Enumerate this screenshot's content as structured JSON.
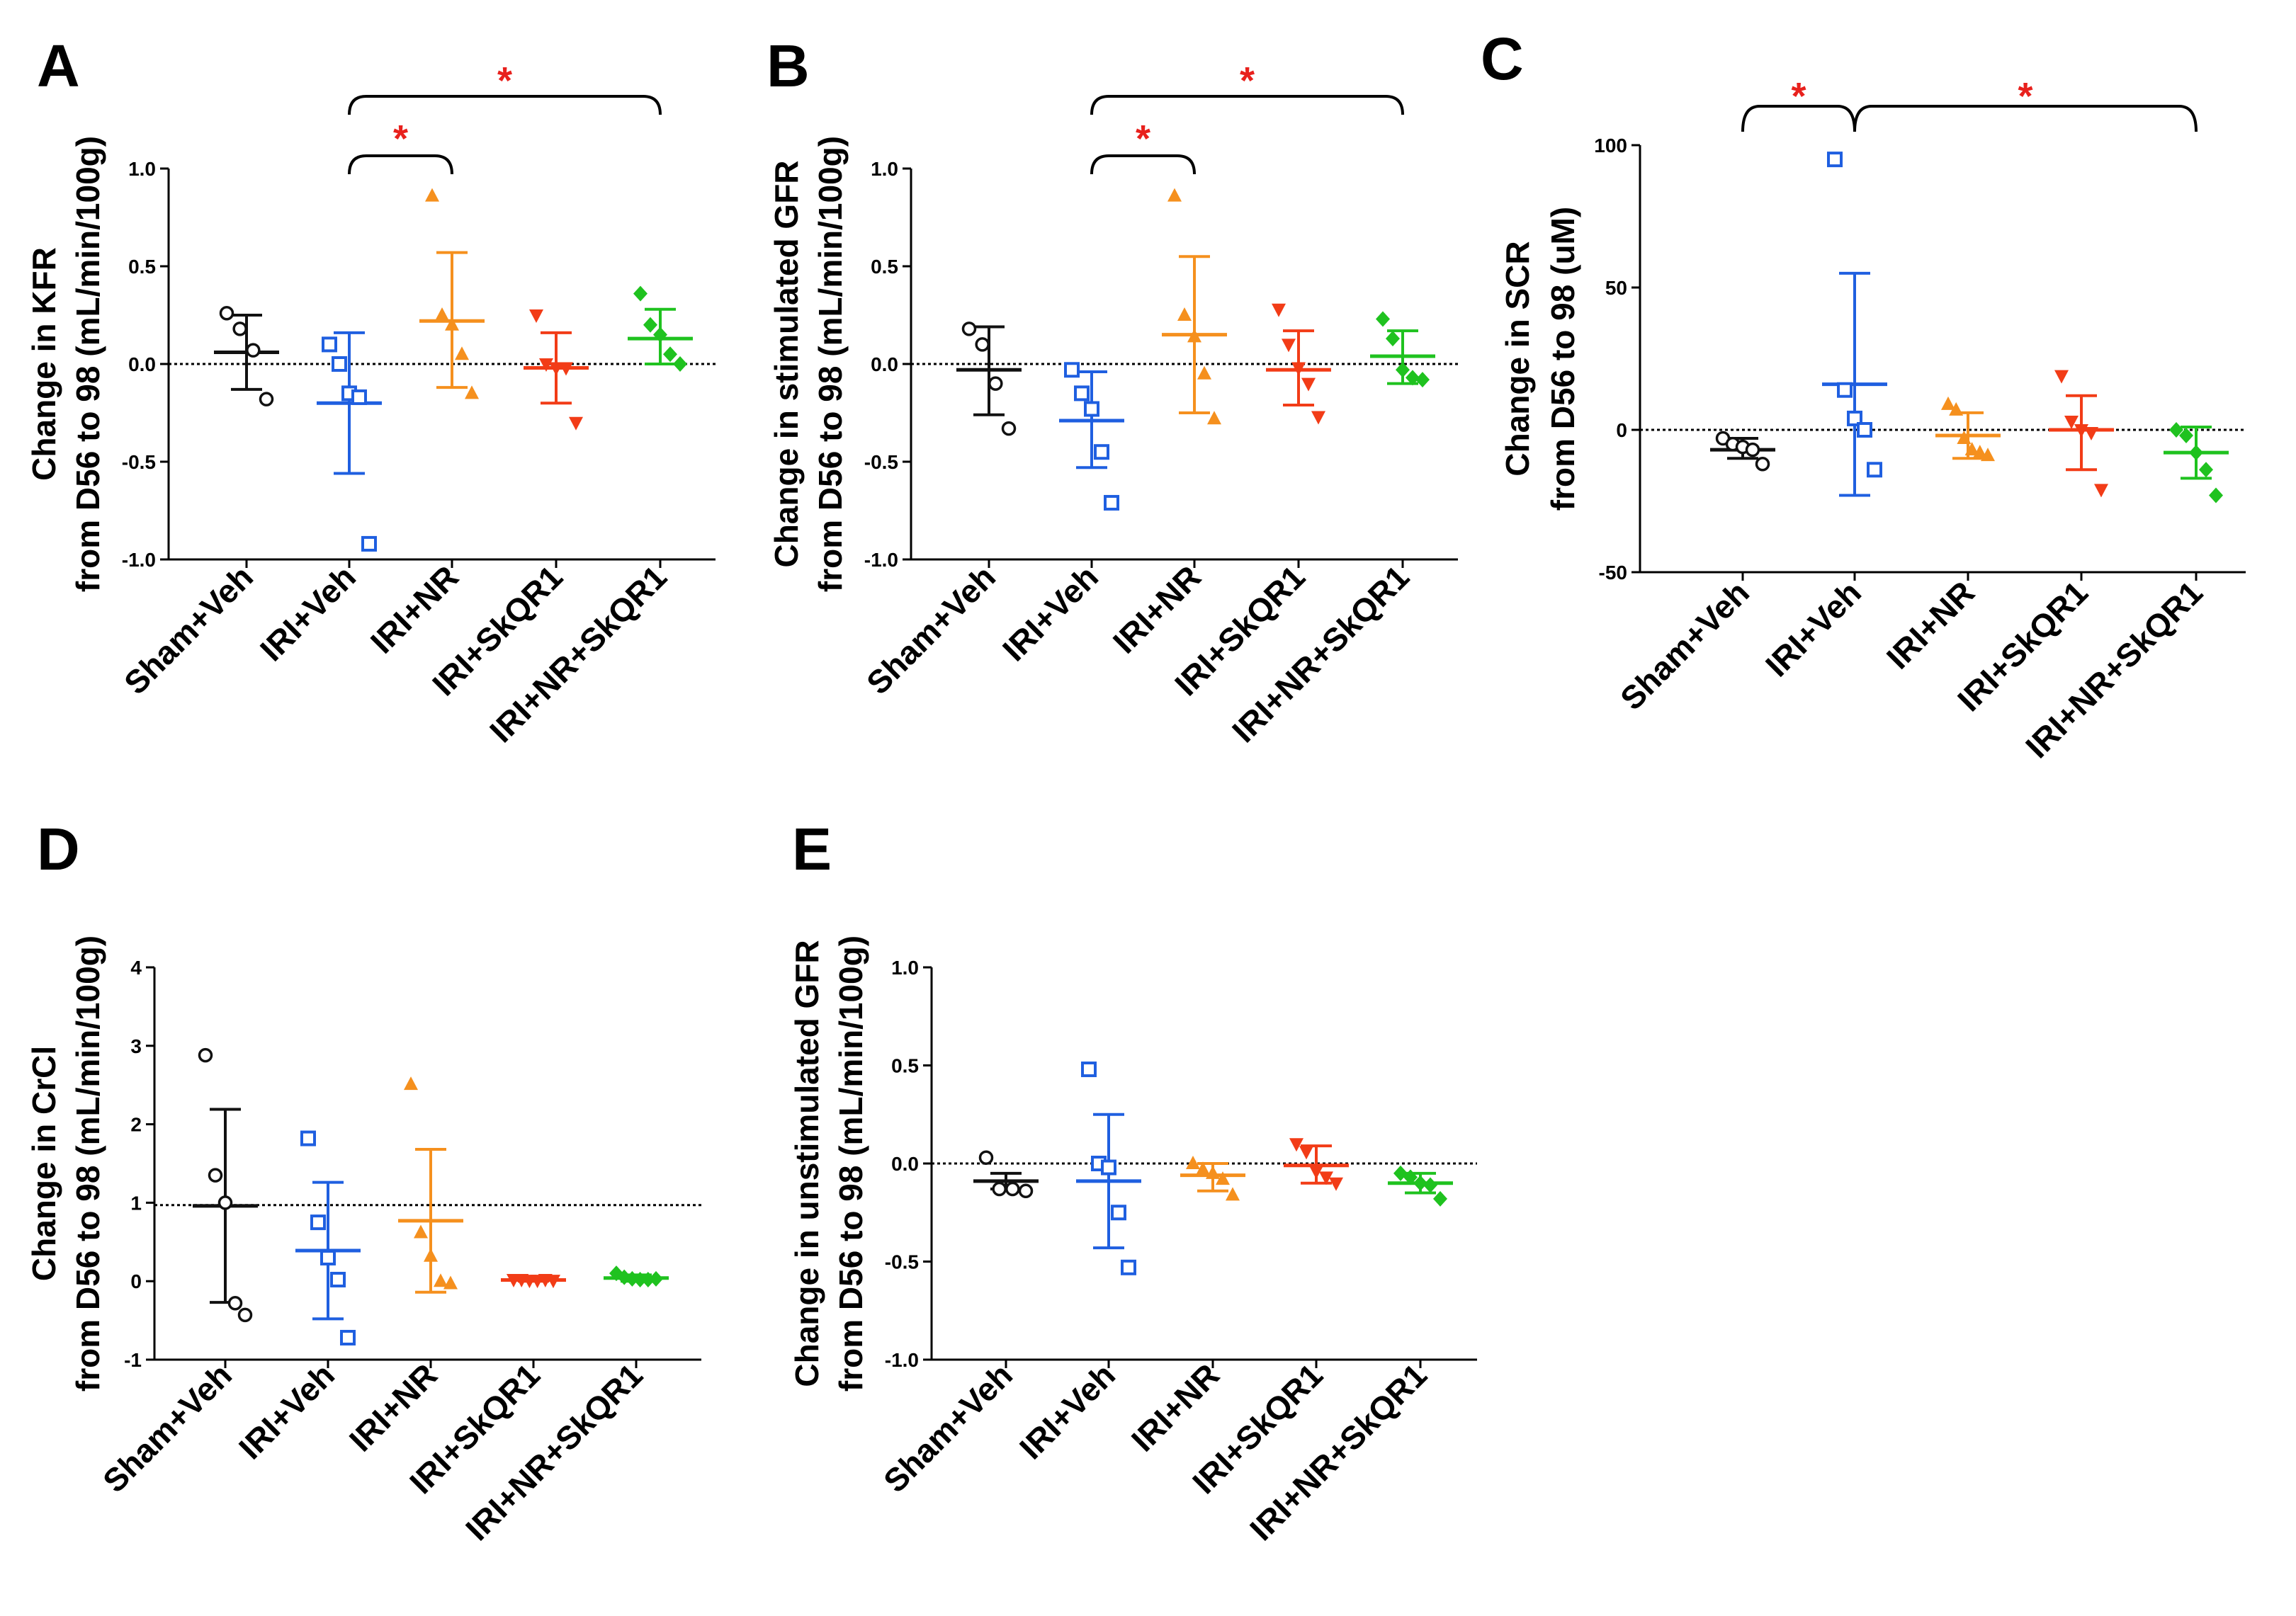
{
  "colors": {
    "Sham+Veh": "#111111",
    "IRI+Veh": "#1f5fe0",
    "IRI+NR": "#f5901e",
    "IRI+SkQR1": "#f23c17",
    "IRI+NR+SkQR1": "#1fc21f",
    "star": "#e8211d"
  },
  "markers": {
    "Sham+Veh": "circle-open",
    "IRI+Veh": "square-open",
    "IRI+NR": "triangle-up",
    "IRI+SkQR1": "triangle-down",
    "IRI+NR+SkQR1": "diamond"
  },
  "chart_data": [
    {
      "id": "A",
      "panel_label": "A",
      "type": "scatter",
      "ylabel_lines": [
        "Change in KFR",
        "from D56 to 98 (mL/min/100g)"
      ],
      "ylim": [
        -1.0,
        1.0
      ],
      "yticks": [
        -1.0,
        -0.5,
        0.0,
        0.5,
        1.0
      ],
      "tick_labels": [
        "-1.0",
        "-0.5",
        "0.0",
        "0.5",
        "1.0"
      ],
      "reference_line": 0,
      "categories": [
        "Sham+Veh",
        "IRI+Veh",
        "IRI+NR",
        "IRI+SkQR1",
        "IRI+NR+SkQR1"
      ],
      "series": [
        {
          "name": "Sham+Veh",
          "points": [
            0.26,
            0.18,
            0.07,
            -0.18
          ],
          "mean": 0.06,
          "sd_upper": 0.25,
          "sd_lower": -0.13
        },
        {
          "name": "IRI+Veh",
          "points": [
            0.1,
            0.0,
            -0.15,
            -0.17,
            -0.92
          ],
          "mean": -0.2,
          "sd_upper": 0.16,
          "sd_lower": -0.56
        },
        {
          "name": "IRI+NR",
          "points": [
            0.86,
            0.25,
            0.2,
            0.05,
            -0.15
          ],
          "mean": 0.22,
          "sd_upper": 0.57,
          "sd_lower": -0.12
        },
        {
          "name": "IRI+SkQR1",
          "points": [
            0.25,
            0.0,
            -0.02,
            -0.02,
            -0.3
          ],
          "mean": -0.02,
          "sd_upper": 0.16,
          "sd_lower": -0.2
        },
        {
          "name": "IRI+NR+SkQR1",
          "points": [
            0.36,
            0.2,
            0.15,
            0.05,
            0.0
          ],
          "mean": 0.13,
          "sd_upper": 0.28,
          "sd_lower": 0.0
        }
      ],
      "significance": [
        {
          "from": "IRI+Veh",
          "to": "IRI+NR",
          "label": "*",
          "level": 1
        },
        {
          "from": "IRI+Veh",
          "to": "IRI+NR+SkQR1",
          "label": "*",
          "level": 2
        }
      ]
    },
    {
      "id": "B",
      "panel_label": "B",
      "type": "scatter",
      "ylabel_lines": [
        "Change in stimulated GFR",
        "from D56 to 98 (mL/min/100g)"
      ],
      "ylim": [
        -1.0,
        1.0
      ],
      "yticks": [
        -1.0,
        -0.5,
        0.0,
        0.5,
        1.0
      ],
      "tick_labels": [
        "-1.0",
        "-0.5",
        "0.0",
        "0.5",
        "1.0"
      ],
      "reference_line": 0,
      "categories": [
        "Sham+Veh",
        "IRI+Veh",
        "IRI+NR",
        "IRI+SkQR1",
        "IRI+NR+SkQR1"
      ],
      "series": [
        {
          "name": "Sham+Veh",
          "points": [
            0.18,
            0.1,
            -0.1,
            -0.33
          ],
          "mean": -0.03,
          "sd_upper": 0.19,
          "sd_lower": -0.26
        },
        {
          "name": "IRI+Veh",
          "points": [
            -0.03,
            -0.15,
            -0.23,
            -0.45,
            -0.71
          ],
          "mean": -0.29,
          "sd_upper": -0.04,
          "sd_lower": -0.53
        },
        {
          "name": "IRI+NR",
          "points": [
            0.86,
            0.25,
            0.14,
            -0.05,
            -0.28
          ],
          "mean": 0.15,
          "sd_upper": 0.55,
          "sd_lower": -0.25
        },
        {
          "name": "IRI+SkQR1",
          "points": [
            0.28,
            0.1,
            -0.02,
            -0.1,
            -0.27
          ],
          "mean": -0.03,
          "sd_upper": 0.17,
          "sd_lower": -0.21
        },
        {
          "name": "IRI+NR+SkQR1",
          "points": [
            0.23,
            0.13,
            -0.03,
            -0.07,
            -0.08
          ],
          "mean": 0.04,
          "sd_upper": 0.17,
          "sd_lower": -0.1
        }
      ],
      "significance": [
        {
          "from": "IRI+Veh",
          "to": "IRI+NR",
          "label": "*",
          "level": 1
        },
        {
          "from": "IRI+Veh",
          "to": "IRI+NR+SkQR1",
          "label": "*",
          "level": 2
        }
      ]
    },
    {
      "id": "C",
      "panel_label": "C",
      "type": "scatter",
      "ylabel_lines": [
        "Change in SCR",
        "from D56 to 98 (uM)"
      ],
      "ylim": [
        -50,
        100
      ],
      "yticks": [
        -50,
        0,
        50,
        100
      ],
      "tick_labels": [
        "-50",
        "0",
        "50",
        "100"
      ],
      "reference_line": 0,
      "categories": [
        "Sham+Veh",
        "IRI+Veh",
        "IRI+NR",
        "IRI+SkQR1",
        "IRI+NR+SkQR1"
      ],
      "series": [
        {
          "name": "Sham+Veh",
          "points": [
            -3,
            -5,
            -6,
            -7,
            -12
          ],
          "mean": -7,
          "sd_upper": -3,
          "sd_lower": -10
        },
        {
          "name": "IRI+Veh",
          "points": [
            95,
            14,
            4,
            0,
            -14
          ],
          "mean": 16,
          "sd_upper": 55,
          "sd_lower": -23
        },
        {
          "name": "IRI+NR",
          "points": [
            9,
            7,
            -3,
            -7,
            -8,
            -9
          ],
          "mean": -2,
          "sd_upper": 6,
          "sd_lower": -10
        },
        {
          "name": "IRI+SkQR1",
          "points": [
            19,
            3,
            0,
            -1,
            -21
          ],
          "mean": 0,
          "sd_upper": 12,
          "sd_lower": -14
        },
        {
          "name": "IRI+NR+SkQR1",
          "points": [
            0,
            -2,
            -8,
            -14,
            -23
          ],
          "mean": -8,
          "sd_upper": 1,
          "sd_lower": -17
        }
      ],
      "significance": [
        {
          "from": "Sham+Veh",
          "to": "IRI+Veh",
          "label": "*",
          "level": 1
        },
        {
          "from": "IRI+Veh",
          "to": "IRI+NR+SkQR1",
          "label": "*",
          "level": 1
        }
      ]
    },
    {
      "id": "D",
      "panel_label": "D",
      "type": "scatter",
      "ylabel_lines": [
        "Change in CrCl",
        "from D56 to 98 (mL/min/100g)"
      ],
      "ylim": [
        -1,
        4
      ],
      "yticks": [
        -1,
        0,
        1,
        2,
        3,
        4
      ],
      "tick_labels": [
        "-1",
        "0",
        "1",
        "2",
        "3",
        "4"
      ],
      "reference_line": 0.97,
      "categories": [
        "Sham+Veh",
        "IRI+Veh",
        "IRI+NR",
        "IRI+SkQR1",
        "IRI+NR+SkQR1"
      ],
      "series": [
        {
          "name": "Sham+Veh",
          "points": [
            2.88,
            1.35,
            1.0,
            -0.28,
            -0.43
          ],
          "mean": 0.96,
          "sd_upper": 2.19,
          "sd_lower": -0.27
        },
        {
          "name": "IRI+Veh",
          "points": [
            1.82,
            0.75,
            0.3,
            0.02,
            -0.72
          ],
          "mean": 0.39,
          "sd_upper": 1.26,
          "sd_lower": -0.48
        },
        {
          "name": "IRI+NR",
          "points": [
            2.51,
            0.62,
            0.32,
            0.0,
            -0.03
          ],
          "mean": 0.77,
          "sd_upper": 1.68,
          "sd_lower": -0.14
        },
        {
          "name": "IRI+SkQR1",
          "points": [
            0.02,
            0.02,
            0.01,
            0.01,
            0.02,
            0.01
          ],
          "mean": 0.015,
          "sd_upper": 0.03,
          "sd_lower": 0.0
        },
        {
          "name": "IRI+NR+SkQR1",
          "points": [
            0.1,
            0.05,
            0.03,
            0.02,
            0.02,
            0.03
          ],
          "mean": 0.04,
          "sd_upper": 0.08,
          "sd_lower": 0.0
        }
      ],
      "significance": []
    },
    {
      "id": "E",
      "panel_label": "E",
      "type": "scatter",
      "ylabel_lines": [
        "Change in unstimulated GFR",
        "from D56 to 98 (mL/min/100g)"
      ],
      "ylim": [
        -1.0,
        1.0
      ],
      "yticks": [
        -1.0,
        -0.5,
        0.0,
        0.5,
        1.0
      ],
      "tick_labels": [
        "-1.0",
        "-0.5",
        "0.0",
        "0.5",
        "1.0"
      ],
      "reference_line": 0,
      "categories": [
        "Sham+Veh",
        "IRI+Veh",
        "IRI+NR",
        "IRI+SkQR1",
        "IRI+NR+SkQR1"
      ],
      "series": [
        {
          "name": "Sham+Veh",
          "points": [
            0.03,
            -0.13,
            -0.13,
            -0.14
          ],
          "mean": -0.09,
          "sd_upper": -0.05,
          "sd_lower": -0.13
        },
        {
          "name": "IRI+Veh",
          "points": [
            0.48,
            0.0,
            -0.02,
            -0.25,
            -0.53
          ],
          "mean": -0.09,
          "sd_upper": 0.25,
          "sd_lower": -0.43
        },
        {
          "name": "IRI+NR",
          "points": [
            0.0,
            -0.03,
            -0.05,
            -0.08,
            -0.16
          ],
          "mean": -0.06,
          "sd_upper": 0.0,
          "sd_lower": -0.14
        },
        {
          "name": "IRI+SkQR1",
          "points": [
            0.1,
            0.06,
            -0.04,
            -0.07,
            -0.1
          ],
          "mean": -0.01,
          "sd_upper": 0.09,
          "sd_lower": -0.1
        },
        {
          "name": "IRI+NR+SkQR1",
          "points": [
            -0.05,
            -0.07,
            -0.1,
            -0.11,
            -0.18
          ],
          "mean": -0.1,
          "sd_upper": -0.05,
          "sd_lower": -0.15
        }
      ],
      "significance": []
    }
  ]
}
